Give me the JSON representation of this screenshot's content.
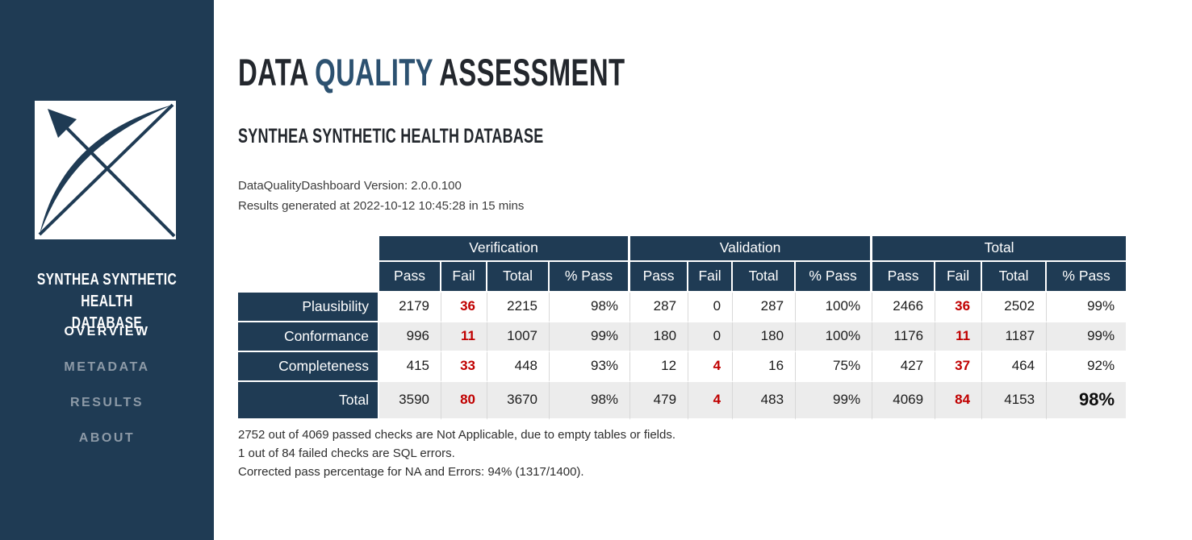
{
  "sidebar": {
    "title": "SYNTHEA SYNTHETIC HEALTH\nDATABASE",
    "nav": [
      {
        "id": "overview",
        "label": "OVERVIEW",
        "active": true
      },
      {
        "id": "metadata",
        "label": "METADATA",
        "active": false
      },
      {
        "id": "results",
        "label": "RESULTS",
        "active": false
      },
      {
        "id": "about",
        "label": "ABOUT",
        "active": false
      }
    ]
  },
  "header": {
    "title_part1": "DATA",
    "title_part2": "QUALITY",
    "title_part3": "ASSESSMENT",
    "subtitle": "SYNTHEA SYNTHETIC HEALTH DATABASE",
    "version_line": "DataQualityDashboard Version: 2.0.0.100",
    "generated_line": "Results generated at 2022-10-12 10:45:28 in 15 mins"
  },
  "results_table": {
    "group_headers": [
      "Verification",
      "Validation",
      "Total"
    ],
    "sub_headers": [
      "Pass",
      "Fail",
      "Total",
      "% Pass"
    ],
    "rows": [
      {
        "label": "Plausibility",
        "is_total": false,
        "cells": [
          {
            "v": "2179"
          },
          {
            "v": "36",
            "red": true
          },
          {
            "v": "2215"
          },
          {
            "v": "98%"
          },
          {
            "v": "287"
          },
          {
            "v": "0"
          },
          {
            "v": "287"
          },
          {
            "v": "100%"
          },
          {
            "v": "2466"
          },
          {
            "v": "36",
            "red": true
          },
          {
            "v": "2502"
          },
          {
            "v": "99%"
          }
        ]
      },
      {
        "label": "Conformance",
        "is_total": false,
        "cells": [
          {
            "v": "996"
          },
          {
            "v": "11",
            "red": true
          },
          {
            "v": "1007"
          },
          {
            "v": "99%"
          },
          {
            "v": "180"
          },
          {
            "v": "0"
          },
          {
            "v": "180"
          },
          {
            "v": "100%"
          },
          {
            "v": "1176"
          },
          {
            "v": "11",
            "red": true
          },
          {
            "v": "1187"
          },
          {
            "v": "99%"
          }
        ]
      },
      {
        "label": "Completeness",
        "is_total": false,
        "cells": [
          {
            "v": "415"
          },
          {
            "v": "33",
            "red": true
          },
          {
            "v": "448"
          },
          {
            "v": "93%"
          },
          {
            "v": "12"
          },
          {
            "v": "4",
            "red": true
          },
          {
            "v": "16"
          },
          {
            "v": "75%"
          },
          {
            "v": "427"
          },
          {
            "v": "37",
            "red": true
          },
          {
            "v": "464"
          },
          {
            "v": "92%"
          }
        ]
      },
      {
        "label": "Total",
        "is_total": true,
        "cells": [
          {
            "v": "3590"
          },
          {
            "v": "80",
            "red": true
          },
          {
            "v": "3670"
          },
          {
            "v": "98%"
          },
          {
            "v": "479"
          },
          {
            "v": "4",
            "red": true
          },
          {
            "v": "483"
          },
          {
            "v": "99%"
          },
          {
            "v": "4069"
          },
          {
            "v": "84",
            "red": true
          },
          {
            "v": "4153"
          },
          {
            "v": "98%",
            "big": true
          }
        ]
      }
    ]
  },
  "footnotes": [
    "2752 out of 4069 passed checks are Not Applicable, due to empty tables or fields.",
    "1 out of 84 failed checks are SQL errors.",
    "Corrected pass percentage for NA and Errors: 94% (1317/1400)."
  ],
  "colors": {
    "navy": "#1f3b54",
    "accent_blue": "#2c5170",
    "fail_red": "#c00000",
    "stripe_gray": "#ececec"
  }
}
